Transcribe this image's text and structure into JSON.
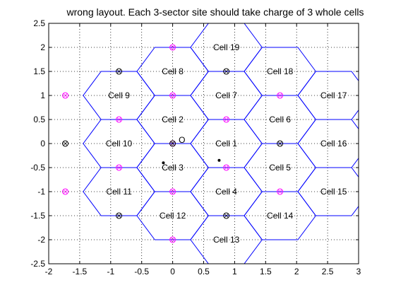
{
  "title": "wrong layout. Each 3-sector site should  take charge of 3 whole cells",
  "chart_data": {
    "type": "scatter",
    "title": "wrong layout. Each 3-sector site should  take charge of 3 whole cells",
    "xlabel": "",
    "ylabel": "",
    "xlim": [
      -2,
      3
    ],
    "ylim": [
      -2.5,
      2.5
    ],
    "grid": true,
    "x_ticks": [
      "-2",
      "-1.5",
      "-1",
      "-0.5",
      "0",
      "0.5",
      "1",
      "1.5",
      "2",
      "2.5",
      "3"
    ],
    "y_ticks": [
      "-2.5",
      "-2",
      "-1.5",
      "-1",
      "-0.5",
      "0",
      "0.5",
      "1",
      "1.5",
      "2",
      "2.5"
    ],
    "hex_size": 0.5774,
    "cells": [
      {
        "label": "Cell 1",
        "x": 0.866,
        "y": 0.0
      },
      {
        "label": "Cell 2",
        "x": 0.0,
        "y": 0.5
      },
      {
        "label": "Cell 3",
        "x": 0.0,
        "y": -0.5
      },
      {
        "label": "Cell 4",
        "x": 0.866,
        "y": -1.0
      },
      {
        "label": "Cell 5",
        "x": 1.732,
        "y": -0.5
      },
      {
        "label": "Cell 6",
        "x": 1.732,
        "y": 0.5
      },
      {
        "label": "Cell 7",
        "x": 0.866,
        "y": 1.0
      },
      {
        "label": "Cell 8",
        "x": 0.0,
        "y": 1.5
      },
      {
        "label": "Cell 9",
        "x": -0.866,
        "y": 1.0
      },
      {
        "label": "Cell 10",
        "x": -0.866,
        "y": 0.0
      },
      {
        "label": "Cell 11",
        "x": -0.866,
        "y": -1.0
      },
      {
        "label": "Cell 12",
        "x": 0.0,
        "y": -1.5
      },
      {
        "label": "Cell 13",
        "x": 0.866,
        "y": -2.0
      },
      {
        "label": "Cell 14",
        "x": 1.732,
        "y": -1.5
      },
      {
        "label": "Cell 15",
        "x": 2.598,
        "y": -1.0
      },
      {
        "label": "Cell 16",
        "x": 2.598,
        "y": 0.0
      },
      {
        "label": "Cell 17",
        "x": 2.598,
        "y": 1.0
      },
      {
        "label": "Cell 18",
        "x": 1.732,
        "y": 1.5
      },
      {
        "label": "Cell 19",
        "x": 0.866,
        "y": 2.0
      }
    ],
    "site_markers_black": [
      {
        "x": 0.0,
        "y": 0.0
      },
      {
        "x": -0.866,
        "y": 1.5
      },
      {
        "x": -1.732,
        "y": 0.0
      },
      {
        "x": -0.866,
        "y": -1.5
      },
      {
        "x": 0.866,
        "y": -1.5
      },
      {
        "x": 1.732,
        "y": 0.0
      },
      {
        "x": 0.866,
        "y": 1.5
      }
    ],
    "site_markers_magenta": [
      {
        "x": 0.0,
        "y": 2.0
      },
      {
        "x": 0.0,
        "y": 1.0
      },
      {
        "x": 0.0,
        "y": 0.0
      },
      {
        "x": 0.0,
        "y": -1.0
      },
      {
        "x": 0.0,
        "y": -2.0
      },
      {
        "x": -0.866,
        "y": 0.5
      },
      {
        "x": -0.866,
        "y": -0.5
      },
      {
        "x": 0.866,
        "y": 0.5
      },
      {
        "x": 0.866,
        "y": -0.5
      },
      {
        "x": -1.732,
        "y": 1.0
      },
      {
        "x": -1.732,
        "y": -1.0
      },
      {
        "x": 1.732,
        "y": 1.0
      },
      {
        "x": 1.732,
        "y": -1.0
      }
    ],
    "origin_label": {
      "text": "O",
      "x": 0.15,
      "y": 0.07
    },
    "dots": [
      {
        "x": -0.15,
        "y": -0.4
      },
      {
        "x": 0.75,
        "y": -0.35
      }
    ],
    "colors": {
      "hex_edge": "#0000ff",
      "site_black": "#000000",
      "site_magenta": "#ff00ff",
      "dot": "#000000"
    }
  }
}
